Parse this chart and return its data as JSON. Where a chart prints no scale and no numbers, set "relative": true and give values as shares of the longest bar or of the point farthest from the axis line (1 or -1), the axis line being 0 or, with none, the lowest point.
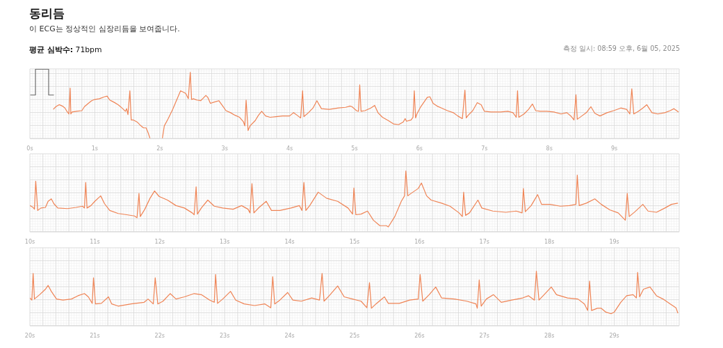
{
  "chart_data": [
    {
      "type": "line",
      "title": "동리듬",
      "subtitle": "이 ECG는 정상적인 심장리듬을 보여줍니다.",
      "annotations": [
        "평균 심박수: 71bpm",
        "측정 일시: 08:59 오후, 6월 05, 2025"
      ],
      "relative": true,
      "color": "#ef8354",
      "grid": true,
      "xlim": [
        0,
        10
      ],
      "xticks": [
        {
          "value": 0,
          "label": "0s"
        },
        {
          "value": 1,
          "label": "1s"
        },
        {
          "value": 2,
          "label": "2s"
        },
        {
          "value": 3,
          "label": "3s"
        },
        {
          "value": 4,
          "label": "4s"
        },
        {
          "value": 5,
          "label": "5s"
        },
        {
          "value": 6,
          "label": "6s"
        },
        {
          "value": 7,
          "label": "7s"
        },
        {
          "value": 8,
          "label": "8s"
        },
        {
          "value": 9,
          "label": "9s"
        }
      ],
      "x": [
        0.36,
        0.4,
        0.45,
        0.5,
        0.54,
        0.57,
        0.6,
        0.62,
        0.63,
        0.65,
        0.72,
        0.8,
        0.84,
        0.9,
        0.95,
        1.0,
        1.07,
        1.15,
        1.19,
        1.23,
        1.29,
        1.36,
        1.43,
        1.47,
        1.49,
        1.51,
        1.54,
        1.56,
        1.59,
        1.65,
        1.7,
        1.75,
        1.79,
        1.82,
        1.85,
        1.95,
        2.04,
        2.07,
        2.13,
        2.2,
        2.26,
        2.32,
        2.36,
        2.4,
        2.44,
        2.47,
        2.49,
        2.52,
        2.57,
        2.63,
        2.66,
        2.71,
        2.74,
        2.78,
        2.84,
        2.91,
        2.97,
        3.02,
        3.09,
        3.16,
        3.23,
        3.29,
        3.31,
        3.33,
        3.36,
        3.39,
        3.47,
        3.52,
        3.57,
        3.63,
        3.7,
        3.79,
        3.89,
        4.0,
        4.06,
        4.13,
        4.17,
        4.2,
        4.22,
        4.29,
        4.36,
        4.42,
        4.49,
        4.61,
        4.75,
        4.86,
        4.93,
        4.96,
        5.03,
        5.06,
        5.08,
        5.1,
        5.16,
        5.25,
        5.31,
        5.36,
        5.43,
        5.52,
        5.6,
        5.68,
        5.75,
        5.78,
        5.8,
        5.87,
        5.9,
        5.92,
        5.94,
        5.96,
        6.02,
        6.07,
        6.12,
        6.16,
        6.21,
        6.27,
        6.34,
        6.43,
        6.52,
        6.59,
        6.66,
        6.7,
        6.72,
        6.75,
        6.82,
        6.89,
        6.95,
        7.0,
        7.1,
        7.25,
        7.36,
        7.44,
        7.49,
        7.51,
        7.53,
        7.61,
        7.68,
        7.74,
        7.79,
        7.86,
        7.96,
        8.07,
        8.18,
        8.27,
        8.34,
        8.38,
        8.41,
        8.43,
        8.5,
        8.57,
        8.64,
        8.7,
        8.78,
        8.89,
        8.99,
        9.1,
        9.19,
        9.24,
        9.27,
        9.3,
        9.37,
        9.44,
        9.5,
        9.58,
        9.67,
        9.78,
        9.86,
        9.92,
        9.99
      ],
      "values": [
        0.44,
        0.48,
        0.51,
        0.49,
        0.46,
        0.41,
        0.37,
        0.76,
        0.37,
        0.4,
        0.41,
        0.42,
        0.48,
        0.53,
        0.57,
        0.59,
        0.6,
        0.63,
        0.64,
        0.58,
        0.55,
        0.51,
        0.45,
        0.41,
        0.45,
        0.36,
        0.72,
        0.28,
        0.28,
        0.25,
        0.2,
        0.16,
        0.16,
        0.09,
        0,
        null,
        0,
        0.19,
        0.3,
        0.44,
        0.58,
        0.72,
        0.7,
        0.68,
        0.6,
        1,
        0.59,
        0.6,
        0.58,
        0.57,
        0.6,
        0.65,
        0.62,
        0.53,
        0.55,
        0.57,
        0.49,
        0.42,
        0.39,
        0.35,
        0.32,
        0.25,
        0.19,
        0.58,
        0.12,
        0.19,
        0.27,
        0.35,
        0.41,
        0.34,
        0.32,
        0.33,
        0.34,
        0.34,
        0.39,
        0.34,
        0.31,
        0.72,
        0.33,
        0.39,
        0.46,
        0.57,
        0.45,
        0.44,
        0.46,
        0.47,
        0.49,
        0.48,
        0.42,
        0.41,
        0.81,
        0.41,
        0.42,
        0.46,
        0.5,
        0.39,
        0.32,
        0.27,
        0.22,
        0.21,
        0.25,
        0.3,
        0.26,
        0.28,
        0.32,
        0.72,
        0.31,
        0.37,
        0.48,
        0.55,
        0.62,
        0.63,
        0.53,
        0.49,
        0.46,
        0.42,
        0.39,
        0.34,
        0.3,
        0.73,
        0.31,
        0.35,
        0.42,
        0.54,
        0.51,
        0.41,
        0.4,
        0.4,
        0.41,
        0.39,
        0.32,
        0.72,
        0.32,
        0.37,
        0.44,
        0.52,
        0.42,
        0.41,
        0.41,
        0.4,
        0.37,
        0.39,
        0.33,
        0.28,
        0.66,
        0.29,
        0.34,
        0.39,
        0.48,
        0.38,
        0.34,
        0.39,
        0.42,
        0.46,
        0.44,
        0.37,
        0.75,
        0.37,
        0.41,
        0.46,
        0.51,
        0.39,
        0.37,
        0.39,
        0.42,
        0.45,
        0.4
      ]
    },
    {
      "type": "line",
      "relative": true,
      "color": "#ef8354",
      "grid": true,
      "xlim": [
        10,
        20
      ],
      "xticks": [
        {
          "value": 10,
          "label": "10s"
        },
        {
          "value": 11,
          "label": "11s"
        },
        {
          "value": 12,
          "label": "12s"
        },
        {
          "value": 13,
          "label": "13s"
        },
        {
          "value": 14,
          "label": "14s"
        },
        {
          "value": 15,
          "label": "15s"
        },
        {
          "value": 16,
          "label": "16s"
        },
        {
          "value": 17,
          "label": "17s"
        },
        {
          "value": 18,
          "label": "18s"
        },
        {
          "value": 19,
          "label": "19s"
        }
      ],
      "x": [
        10.0,
        10.05,
        10.07,
        10.09,
        10.12,
        10.17,
        10.24,
        10.28,
        10.33,
        10.37,
        10.43,
        10.58,
        10.71,
        10.81,
        10.84,
        10.86,
        10.88,
        10.94,
        11.0,
        11.09,
        11.15,
        11.23,
        11.36,
        11.49,
        11.61,
        11.65,
        11.68,
        11.7,
        11.77,
        11.85,
        11.92,
        11.99,
        12.12,
        12.25,
        12.38,
        12.5,
        12.53,
        12.56,
        12.58,
        12.64,
        12.74,
        12.84,
        12.97,
        13.13,
        13.26,
        13.36,
        13.39,
        13.42,
        13.45,
        13.53,
        13.64,
        13.72,
        13.85,
        14.02,
        14.15,
        14.19,
        14.22,
        14.25,
        14.31,
        14.44,
        14.57,
        14.74,
        14.9,
        14.97,
        14.99,
        15.02,
        15.1,
        15.2,
        15.29,
        15.39,
        15.49,
        15.52,
        15.62,
        15.72,
        15.77,
        15.79,
        15.82,
        15.87,
        15.98,
        16.03,
        16.11,
        16.18,
        16.34,
        16.47,
        16.61,
        16.66,
        16.68,
        16.71,
        16.77,
        16.9,
        16.96,
        17.13,
        17.33,
        17.49,
        17.58,
        17.6,
        17.63,
        17.72,
        17.82,
        17.88,
        18.01,
        18.17,
        18.31,
        18.41,
        18.43,
        18.46,
        18.57,
        18.7,
        18.8,
        18.93,
        19.06,
        19.17,
        19.2,
        19.23,
        19.32,
        19.44,
        19.52,
        19.65,
        19.78,
        19.88,
        19.98
      ],
      "values": [
        0.43,
        0.4,
        0.37,
        0.83,
        0.35,
        0.39,
        0.4,
        0.5,
        0.54,
        0.46,
        0.39,
        0.38,
        0.4,
        0.42,
        0.39,
        0.81,
        0.39,
        0.43,
        0.5,
        0.59,
        0.46,
        0.35,
        0.3,
        0.28,
        0.26,
        0.23,
        0.63,
        0.25,
        0.37,
        0.55,
        0.67,
        0.58,
        0.52,
        0.43,
        0.39,
        0.31,
        0.28,
        0.74,
        0.29,
        0.39,
        0.52,
        0.42,
        0.39,
        0.37,
        0.43,
        0.37,
        0.31,
        0.79,
        0.31,
        0.4,
        0.5,
        0.35,
        0.35,
        0.39,
        0.43,
        0.35,
        0.81,
        0.35,
        0.43,
        0.65,
        0.55,
        0.5,
        0.39,
        0.29,
        0.72,
        0.28,
        0.29,
        0.34,
        0.19,
        0.1,
        0.1,
        0.08,
        0.25,
        0.5,
        0.59,
        1,
        0.59,
        0.63,
        0.71,
        0.8,
        0.59,
        0.52,
        0.47,
        0.42,
        0.31,
        0.25,
        0.65,
        0.27,
        0.31,
        0.52,
        0.39,
        0.34,
        0.32,
        0.34,
        0.31,
        0.71,
        0.33,
        0.43,
        0.61,
        0.45,
        0.45,
        0.42,
        0.43,
        0.45,
        0.93,
        0.43,
        0.47,
        0.54,
        0.45,
        0.36,
        0.31,
        0.19,
        0.63,
        0.25,
        0.33,
        0.45,
        0.34,
        0.32,
        0.39,
        0.45,
        0.47
      ]
    },
    {
      "type": "line",
      "relative": true,
      "color": "#ef8354",
      "grid": true,
      "xlim": [
        20,
        30
      ],
      "xticks": [
        {
          "value": 20,
          "label": "20s"
        },
        {
          "value": 21,
          "label": "21s"
        },
        {
          "value": 22,
          "label": "22s"
        },
        {
          "value": 23,
          "label": "23s"
        },
        {
          "value": 24,
          "label": "24s"
        },
        {
          "value": 25,
          "label": "25s"
        },
        {
          "value": 26,
          "label": "26s"
        },
        {
          "value": 27,
          "label": "27s"
        },
        {
          "value": 28,
          "label": "28s"
        },
        {
          "value": 29,
          "label": "29s"
        }
      ],
      "x": [
        20.0,
        20.03,
        20.05,
        20.07,
        20.15,
        20.24,
        20.28,
        20.33,
        20.41,
        20.51,
        20.64,
        20.74,
        20.84,
        20.9,
        20.96,
        20.98,
        21.01,
        21.1,
        21.21,
        21.26,
        21.36,
        21.56,
        21.76,
        21.82,
        21.9,
        21.93,
        21.97,
        22.05,
        22.16,
        22.25,
        22.38,
        22.53,
        22.64,
        22.77,
        22.84,
        22.86,
        22.89,
        22.97,
        23.09,
        23.17,
        23.3,
        23.46,
        23.62,
        23.71,
        23.74,
        23.77,
        23.85,
        23.97,
        24.05,
        24.18,
        24.34,
        24.46,
        24.5,
        24.53,
        24.61,
        24.74,
        24.84,
        24.97,
        25.1,
        25.19,
        25.23,
        25.26,
        25.33,
        25.46,
        25.52,
        25.69,
        25.85,
        25.98,
        26.01,
        26.05,
        26.15,
        26.25,
        26.34,
        26.54,
        26.73,
        26.87,
        26.89,
        26.92,
        26.95,
        27.03,
        27.14,
        27.26,
        27.42,
        27.59,
        27.68,
        27.77,
        27.8,
        27.84,
        27.92,
        28.03,
        28.11,
        28.28,
        28.44,
        28.54,
        28.59,
        28.62,
        28.65,
        28.74,
        28.8,
        28.87,
        28.95,
        29.0,
        29.1,
        29.19,
        29.29,
        29.34,
        29.36,
        29.39,
        29.45,
        29.55,
        29.65,
        29.75,
        29.85,
        29.95,
        29.98
      ],
      "values": [
        0.51,
        0.47,
        0.96,
        0.49,
        0.57,
        0.67,
        0.74,
        0.63,
        0.49,
        0.47,
        0.49,
        0.55,
        0.59,
        0.53,
        0.41,
        0.88,
        0.4,
        0.41,
        0.53,
        0.4,
        0.36,
        0.4,
        0.43,
        0.49,
        0.4,
        0.88,
        0.4,
        0.45,
        0.59,
        0.49,
        0.53,
        0.59,
        0.57,
        0.47,
        0.43,
        0.94,
        0.41,
        0.49,
        0.63,
        0.47,
        0.4,
        0.37,
        0.4,
        0.33,
        0.9,
        0.4,
        0.47,
        0.61,
        0.47,
        0.45,
        0.51,
        0.47,
        0.96,
        0.45,
        0.55,
        0.73,
        0.53,
        0.49,
        0.45,
        0.33,
        0.79,
        0.32,
        0.4,
        0.53,
        0.41,
        0.41,
        0.47,
        0.49,
        0.94,
        0.45,
        0.57,
        0.71,
        0.51,
        0.49,
        0.45,
        0.4,
        0.32,
        0.84,
        0.36,
        0.49,
        0.57,
        0.43,
        0.47,
        0.51,
        0.55,
        0.47,
        1,
        0.47,
        0.57,
        0.71,
        0.57,
        0.51,
        0.49,
        0.4,
        0.28,
        0.82,
        0.28,
        0.32,
        0.32,
        0.25,
        0.22,
        0.25,
        0.43,
        0.55,
        0.57,
        0.51,
        0.98,
        0.53,
        0.67,
        0.71,
        0.55,
        0.49,
        0.41,
        0.33,
        0.23
      ]
    }
  ]
}
